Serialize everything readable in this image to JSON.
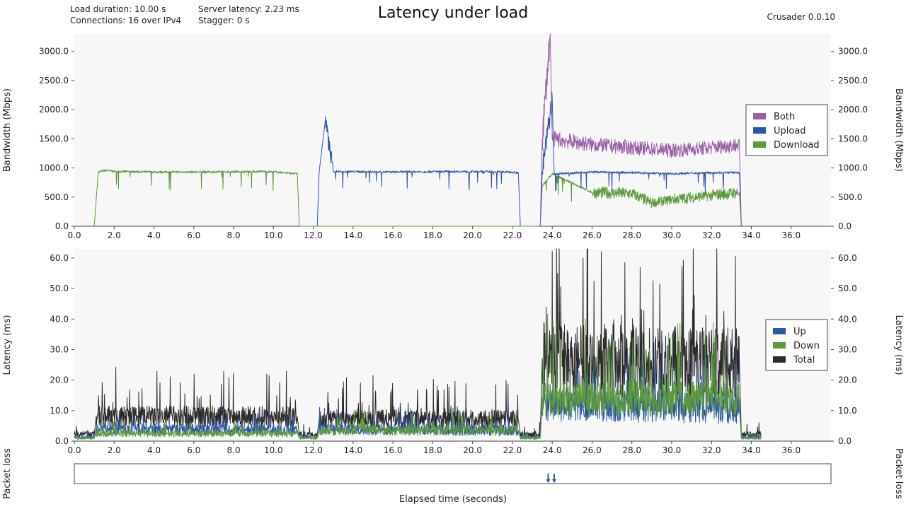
{
  "header": {
    "title": "Latency under load",
    "version": "Crusader 0.0.10",
    "info_left": [
      "Load duration: 10.00 s",
      "Connections: 16 over IPv4"
    ],
    "info_right": [
      "Server latency: 2.23 ms",
      "Stagger: 0 s"
    ]
  },
  "colors": {
    "both": "#9b5fa6",
    "upload": "#2a56a8",
    "download": "#5a9a3a",
    "total": "#2b2b2b",
    "plot_bg": "#f7f7f7"
  },
  "chart_data": [
    {
      "id": "bandwidth",
      "type": "line",
      "ylabel": "Bandwidth (Mbps)",
      "ylim": [
        0,
        3300
      ],
      "yticks": [
        "0.0",
        "500.0",
        "1000.0",
        "1500.0",
        "2000.0",
        "2500.0",
        "3000.0"
      ],
      "xlim": [
        0,
        38
      ],
      "xticks": [
        "0.0",
        "2.0",
        "4.0",
        "6.0",
        "8.0",
        "10.0",
        "12.0",
        "14.0",
        "16.0",
        "18.0",
        "20.0",
        "22.0",
        "24.0",
        "26.0",
        "28.0",
        "30.0",
        "32.0",
        "34.0",
        "36.0"
      ],
      "legend": [
        "Both",
        "Upload",
        "Download"
      ],
      "legend_position": "right",
      "series": [
        {
          "name": "Download",
          "color_key": "download",
          "segments": [
            {
              "x": [
                1.0,
                1.2,
                1.6,
                2.0,
                4.0,
                6.0,
                8.0,
                9.5,
                10.5,
                11.2,
                11.3
              ],
              "y": [
                0,
                930,
                960,
                940,
                930,
                930,
                935,
                940,
                920,
                900,
                0
              ]
            },
            {
              "x": [
                11.3,
                23.3
              ],
              "y": [
                0,
                0
              ]
            },
            {
              "x": [
                23.4,
                23.5,
                24.0,
                26.0,
                28.0,
                29.0,
                30.0,
                32.0,
                33.4,
                33.5
              ],
              "y": [
                0,
                700,
                900,
                580,
                560,
                400,
                460,
                530,
                580,
                0
              ]
            }
          ]
        },
        {
          "name": "Upload",
          "color_key": "upload",
          "segments": [
            {
              "x": [
                12.2,
                12.3,
                12.6,
                13.0,
                16.0,
                19.0,
                22.0,
                22.3,
                22.4
              ],
              "y": [
                0,
                950,
                1800,
                940,
                930,
                940,
                930,
                920,
                0
              ]
            },
            {
              "x": [
                23.4,
                23.5,
                24.0,
                24.1,
                26.0,
                28.0,
                30.0,
                32.0,
                33.4,
                33.5
              ],
              "y": [
                0,
                930,
                2200,
                900,
                930,
                920,
                900,
                920,
                920,
                0
              ]
            }
          ]
        },
        {
          "name": "Both",
          "color_key": "both",
          "segments": [
            {
              "x": [
                23.4,
                23.5,
                23.9,
                24.0,
                25.0,
                26.0,
                28.0,
                30.0,
                32.0,
                33.4,
                33.5
              ],
              "y": [
                0,
                1500,
                3300,
                1500,
                1450,
                1400,
                1350,
                1300,
                1350,
                1400,
                0
              ]
            }
          ]
        }
      ]
    },
    {
      "id": "latency",
      "type": "line",
      "ylabel": "Latency (ms)",
      "ylim": [
        0,
        63
      ],
      "yticks": [
        "0.0",
        "10.0",
        "20.0",
        "30.0",
        "40.0",
        "50.0",
        "60.0"
      ],
      "xlim": [
        0,
        38
      ],
      "xticks": [
        "0.0",
        "2.0",
        "4.0",
        "6.0",
        "8.0",
        "10.0",
        "12.0",
        "14.0",
        "16.0",
        "18.0",
        "20.0",
        "22.0",
        "24.0",
        "26.0",
        "28.0",
        "30.0",
        "32.0",
        "34.0",
        "36.0"
      ],
      "legend": [
        "Up",
        "Down",
        "Total"
      ],
      "legend_position": "right",
      "series": [
        {
          "name": "Total",
          "color_key": "total",
          "segments": [
            {
              "x": [
                0.0,
                1.0,
                1.1,
                11.2,
                11.3,
                12.2,
                12.3,
                22.3,
                22.4,
                23.4,
                23.5,
                33.4,
                33.5,
                34.5
              ],
              "y": [
                2.2,
                2.2,
                8.0,
                8.0,
                2.2,
                2.2,
                7.0,
                7.0,
                2.2,
                2.2,
                27.0,
                25.0,
                2.2,
                2.2
              ]
            }
          ]
        },
        {
          "name": "Up",
          "color_key": "upload",
          "segments": [
            {
              "x": [
                0.0,
                1.0,
                1.1,
                11.2,
                11.3,
                12.2,
                12.3,
                22.3,
                22.4,
                23.4,
                23.5,
                33.4,
                33.5,
                34.5
              ],
              "y": [
                1.2,
                1.2,
                4.0,
                3.5,
                1.2,
                1.2,
                4.0,
                3.5,
                1.2,
                1.2,
                12.0,
                11.0,
                1.2,
                1.2
              ]
            }
          ]
        },
        {
          "name": "Down",
          "color_key": "download",
          "segments": [
            {
              "x": [
                0.0,
                1.0,
                1.1,
                11.2,
                11.3,
                12.2,
                12.3,
                22.3,
                22.4,
                23.4,
                23.5,
                33.4,
                33.5,
                34.5
              ],
              "y": [
                1.0,
                1.0,
                2.5,
                2.5,
                1.0,
                1.0,
                3.5,
                3.5,
                1.0,
                1.0,
                14.0,
                14.0,
                1.0,
                1.0
              ]
            }
          ]
        }
      ]
    },
    {
      "id": "packet_loss",
      "type": "scatter",
      "ylabel": "Packet loss",
      "xlim": [
        0,
        38
      ],
      "xlabel": "Elapsed time (seconds)",
      "events": [
        23.8,
        24.1
      ]
    }
  ]
}
